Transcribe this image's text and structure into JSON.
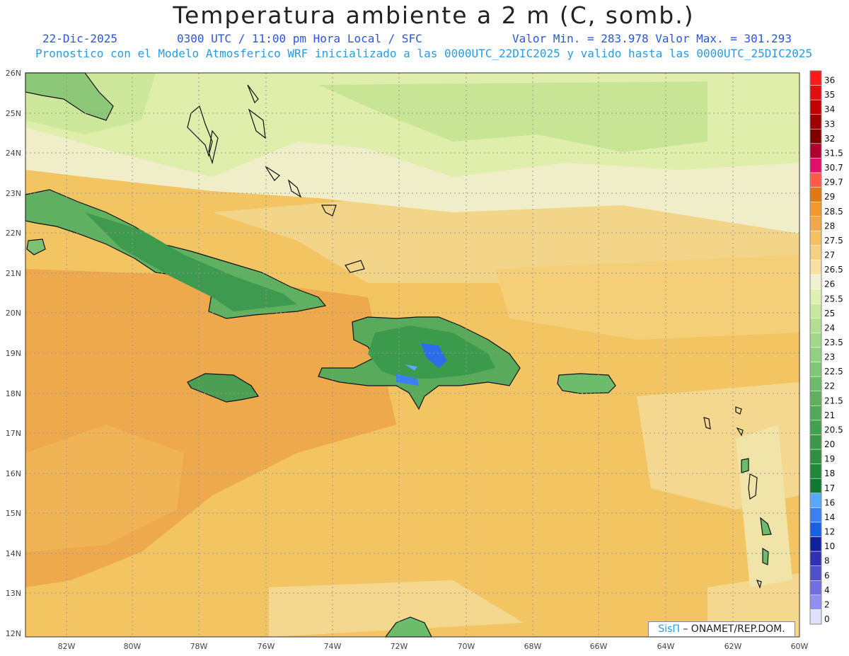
{
  "title": "Temperatura ambiente a 2 m (C, somb.)",
  "header": {
    "date": "22-Dic-2025",
    "time": "0300 UTC / 11:00 pm Hora Local / SFC",
    "minmax": "Valor Min. = 283.978  Valor Max. = 301.293",
    "model": "Pronostico con el Modelo Atmosferico WRF inicializado a las 0000UTC_22DIC2025 y valido hasta las  0000UTC_25DIC2025"
  },
  "axes": {
    "lat_labels": [
      "26N",
      "25N",
      "24N",
      "23N",
      "22N",
      "21N",
      "20N",
      "19N",
      "18N",
      "17N",
      "16N",
      "15N",
      "14N",
      "13N",
      "12N"
    ],
    "lon_labels": [
      "82W",
      "80W",
      "78W",
      "76W",
      "74W",
      "72W",
      "70W",
      "68W",
      "66W",
      "64W",
      "62W",
      "60W"
    ]
  },
  "colorbar": {
    "labels": [
      "36",
      "35",
      "34",
      "33",
      "32",
      "31.5",
      "30.7",
      "29.7",
      "29",
      "28.5",
      "28",
      "27.5",
      "27",
      "26.5",
      "26",
      "25.5",
      "25",
      "24",
      "23.5",
      "23",
      "22.5",
      "22",
      "21.5",
      "21",
      "20.5",
      "20",
      "19",
      "18",
      "17",
      "16",
      "14",
      "12",
      "10",
      "8",
      "6",
      "4",
      "2",
      "0"
    ],
    "colors": [
      "#ff1a1a",
      "#e01010",
      "#c00000",
      "#a00000",
      "#800000",
      "#b00030",
      "#e0106a",
      "#ff5a4a",
      "#e07a10",
      "#f09a30",
      "#f0a848",
      "#f4c060",
      "#f4d080",
      "#f8e0a0",
      "#f0f0d0",
      "#e0f0b0",
      "#c8e8a0",
      "#b0e090",
      "#a0d888",
      "#90d080",
      "#80c878",
      "#6cbc6c",
      "#60b060",
      "#50a858",
      "#44a050",
      "#3a9848",
      "#2e9040",
      "#208838",
      "#107830",
      "#5aa8f8",
      "#3a80f0",
      "#1a60e0",
      "#10209a",
      "#3030b0",
      "#5050c8",
      "#7070e0",
      "#9090f0",
      "#e0e0ff"
    ]
  },
  "credit": {
    "brand": "SisΠ",
    "org": "– ONAMET/REP.DOM."
  }
}
